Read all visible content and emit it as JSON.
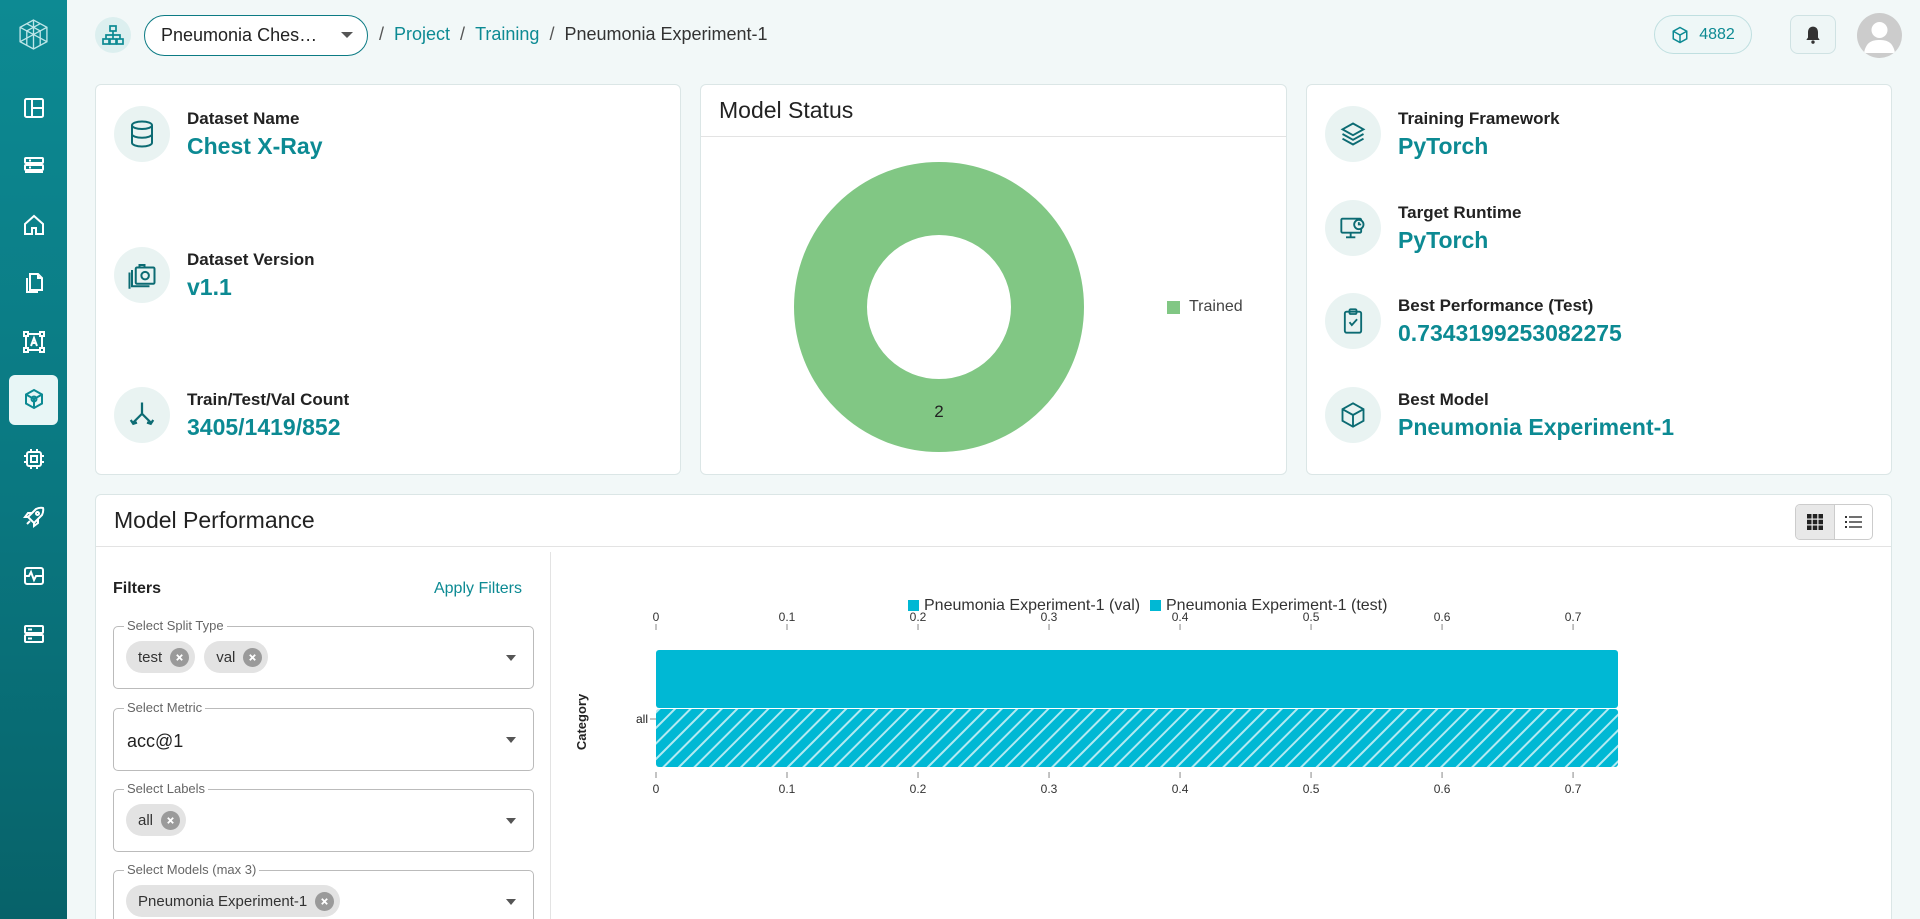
{
  "topbar": {
    "project_select": "Pneumonia Ches…",
    "breadcrumbs": [
      {
        "label": "Project",
        "link": true
      },
      {
        "label": "Training",
        "link": true
      },
      {
        "label": "Pneumonia Experiment-1",
        "link": false
      }
    ],
    "credits": "4882"
  },
  "sidebar": {
    "items": [
      "dashboard-icon",
      "dataset-icon",
      "home-icon",
      "documents-icon",
      "annotation-icon",
      "training-icon",
      "chip-icon",
      "deploy-rocket-icon",
      "monitor-icon",
      "storage-icon"
    ],
    "active": "training-icon"
  },
  "dataset_card": {
    "name_label": "Dataset Name",
    "name_value": "Chest X-Ray",
    "version_label": "Dataset Version",
    "version_value": "v1.1",
    "count_label": "Train/Test/Val Count",
    "count_value": "3405/1419/852"
  },
  "status_card": {
    "title": "Model Status",
    "legend": "Trained",
    "count_label": "2"
  },
  "framework_card": {
    "framework_label": "Training Framework",
    "framework_value": "PyTorch",
    "runtime_label": "Target Runtime",
    "runtime_value": "PyTorch",
    "perf_label": "Best Performance (Test)",
    "perf_value": "0.7343199253082275",
    "model_label": "Best Model",
    "model_value": "Pneumonia Experiment-1"
  },
  "performance": {
    "title": "Model Performance",
    "filters_title": "Filters",
    "apply_label": "Apply Filters",
    "split_label": "Select Split Type",
    "split_chips": [
      "test",
      "val"
    ],
    "metric_label": "Select Metric",
    "metric_value": "acc@1",
    "labels_label": "Select Labels",
    "labels_chips": [
      "all"
    ],
    "models_label": "Select Models (max 3)",
    "models_chips": [
      "Pneumonia Experiment-1"
    ]
  },
  "colors": {
    "accent": "#0c8a93",
    "trained": "#81c784",
    "bar": "#00b8d4"
  },
  "chart_data": [
    {
      "type": "pie",
      "title": "Model Status",
      "categories": [
        "Trained"
      ],
      "values": [
        2
      ],
      "donut": true
    },
    {
      "type": "bar",
      "orientation": "horizontal",
      "categories": [
        "all"
      ],
      "ylabel": "Category",
      "xlim": [
        0,
        0.7343
      ],
      "xticks": [
        "0",
        "0.1",
        "0.2",
        "0.3",
        "0.4",
        "0.5",
        "0.6",
        "0.7"
      ],
      "legend_position": "top",
      "series": [
        {
          "name": "Pneumonia Experiment-1 (val)",
          "values": [
            0.7343
          ],
          "pattern": "solid"
        },
        {
          "name": "Pneumonia Experiment-1 (test)",
          "values": [
            0.7343199253082275
          ],
          "pattern": "hatched"
        }
      ]
    }
  ]
}
